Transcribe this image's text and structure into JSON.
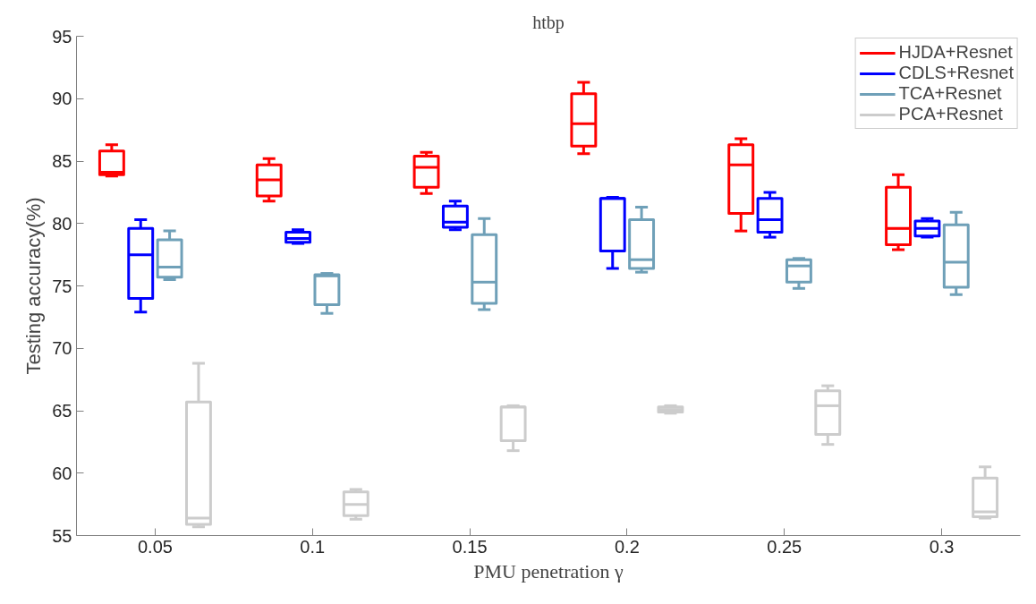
{
  "chart_data": {
    "type": "box",
    "title": "htbp",
    "xlabel": "PMU penetration γ",
    "ylabel": "Testing accuracy(%)",
    "x": [
      0.05,
      0.1,
      0.15,
      0.2,
      0.25,
      0.3
    ],
    "xlim": [
      0.025,
      0.325
    ],
    "xticks": [
      0.05,
      0.1,
      0.15,
      0.2,
      0.25,
      0.3
    ],
    "ylim": [
      55,
      95
    ],
    "yticks": [
      55,
      60,
      65,
      70,
      75,
      80,
      85,
      90,
      95
    ],
    "grid": false,
    "legend": "top right",
    "series": [
      {
        "name": "HJDA+Resnet",
        "color": "#ff0000",
        "boxes": [
          {
            "low": 83.8,
            "q1": 83.9,
            "median": 84.1,
            "q3": 85.8,
            "high": 86.3
          },
          {
            "low": 81.8,
            "q1": 82.2,
            "median": 83.5,
            "q3": 84.7,
            "high": 85.2
          },
          {
            "low": 82.4,
            "q1": 82.9,
            "median": 84.5,
            "q3": 85.4,
            "high": 85.7
          },
          {
            "low": 85.6,
            "q1": 86.2,
            "median": 88.0,
            "q3": 90.4,
            "high": 91.3
          },
          {
            "low": 79.4,
            "q1": 80.8,
            "median": 84.7,
            "q3": 86.3,
            "high": 86.8
          },
          {
            "low": 77.9,
            "q1": 78.3,
            "median": 79.6,
            "q3": 82.9,
            "high": 83.9
          }
        ]
      },
      {
        "name": "CDLS+Resnet",
        "color": "#0000ff",
        "boxes": [
          {
            "low": 72.9,
            "q1": 74.0,
            "median": 77.5,
            "q3": 79.6,
            "high": 80.3
          },
          {
            "low": 78.4,
            "q1": 78.5,
            "median": 78.8,
            "q3": 79.3,
            "high": 79.5
          },
          {
            "low": 79.5,
            "q1": 79.7,
            "median": 80.1,
            "q3": 81.4,
            "high": 81.8
          },
          {
            "low": 76.4,
            "q1": 77.8,
            "median": 82.0,
            "q3": 82.0,
            "high": 82.1
          },
          {
            "low": 78.9,
            "q1": 79.3,
            "median": 80.3,
            "q3": 82.0,
            "high": 82.5
          },
          {
            "low": 78.9,
            "q1": 79.0,
            "median": 79.6,
            "q3": 80.2,
            "high": 80.4
          }
        ]
      },
      {
        "name": "TCA+Resnet",
        "color": "#6fa0b8",
        "boxes": [
          {
            "low": 75.5,
            "q1": 75.7,
            "median": 76.5,
            "q3": 78.7,
            "high": 79.4
          },
          {
            "low": 72.8,
            "q1": 73.5,
            "median": 75.8,
            "q3": 75.9,
            "high": 76.0
          },
          {
            "low": 73.1,
            "q1": 73.6,
            "median": 75.3,
            "q3": 79.1,
            "high": 80.4
          },
          {
            "low": 76.1,
            "q1": 76.4,
            "median": 77.1,
            "q3": 80.3,
            "high": 81.3
          },
          {
            "low": 74.8,
            "q1": 75.3,
            "median": 76.6,
            "q3": 77.1,
            "high": 77.2
          },
          {
            "low": 74.3,
            "q1": 74.9,
            "median": 76.9,
            "q3": 79.9,
            "high": 80.9
          }
        ]
      },
      {
        "name": "PCA+Resnet",
        "color": "#cccccc",
        "boxes": [
          {
            "low": 55.7,
            "q1": 55.9,
            "median": 56.4,
            "q3": 65.7,
            "high": 68.8
          },
          {
            "low": 56.3,
            "q1": 56.6,
            "median": 57.5,
            "q3": 58.5,
            "high": 58.7
          },
          {
            "low": 61.8,
            "q1": 62.6,
            "median": 65.3,
            "q3": 65.3,
            "high": 65.4
          },
          {
            "low": 64.8,
            "q1": 64.9,
            "median": 65.1,
            "q3": 65.3,
            "high": 65.4
          },
          {
            "low": 62.3,
            "q1": 63.1,
            "median": 65.4,
            "q3": 66.6,
            "high": 67.0
          },
          {
            "low": 56.4,
            "q1": 56.5,
            "median": 56.9,
            "q3": 59.6,
            "high": 60.5
          }
        ]
      }
    ]
  }
}
